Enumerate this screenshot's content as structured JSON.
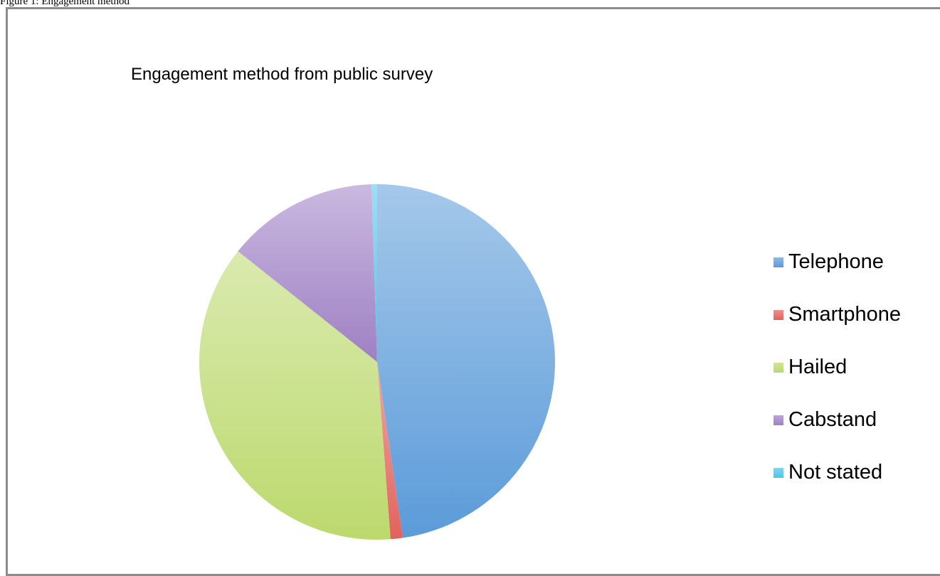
{
  "caption": "Figure 1: Engagement method",
  "chart_data": {
    "type": "pie",
    "title": "Engagement method from public survey",
    "categories": [
      "Telephone",
      "Smartphone",
      "Hailed",
      "Cabstand",
      "Not stated"
    ],
    "values": [
      47.7,
      1.1,
      36.9,
      13.8,
      0.5
    ],
    "colors": [
      "#5b9bd9",
      "#e2625c",
      "#bcd96d",
      "#9e80c4",
      "#4cc5e8"
    ],
    "legend_position": "right"
  }
}
